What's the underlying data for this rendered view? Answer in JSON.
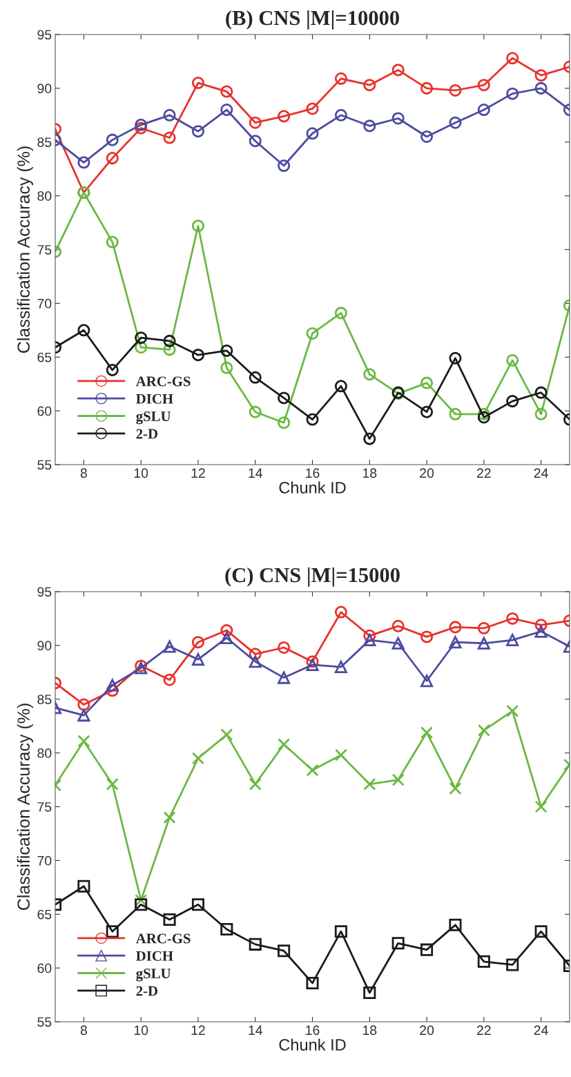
{
  "chart_data": [
    {
      "type": "line",
      "title": "(B) CNS |M|=10000",
      "xlabel": "Chunk ID",
      "ylabel": "Classification Accuracy (%)",
      "x": [
        7,
        8,
        9,
        10,
        11,
        12,
        13,
        14,
        15,
        16,
        17,
        18,
        19,
        20,
        21,
        22,
        23,
        24,
        25
      ],
      "xlim": [
        7,
        25
      ],
      "xticks": [
        8,
        10,
        12,
        14,
        16,
        18,
        20,
        22,
        24
      ],
      "ylim": [
        55,
        95
      ],
      "yticks": [
        55,
        60,
        65,
        70,
        75,
        80,
        85,
        90,
        95
      ],
      "grid": false,
      "legend": "bottom left",
      "marker": "circle",
      "line_style": "solid",
      "series": [
        {
          "name": "ARC-GS",
          "color": "#e8312a",
          "values": [
            86.2,
            80.3,
            83.5,
            86.3,
            85.4,
            90.5,
            89.7,
            86.8,
            87.4,
            88.1,
            90.9,
            90.3,
            91.7,
            90.0,
            89.8,
            90.3,
            92.8,
            91.2,
            92.0
          ]
        },
        {
          "name": "DICH",
          "color": "#4b4aa0",
          "values": [
            85.2,
            83.1,
            85.2,
            86.6,
            87.5,
            86.0,
            88.0,
            85.1,
            82.8,
            85.8,
            87.5,
            86.5,
            87.2,
            85.5,
            86.8,
            88.0,
            89.5,
            90.0,
            88.0
          ]
        },
        {
          "name": "gSLU",
          "color": "#6ab842",
          "values": [
            74.8,
            80.3,
            75.7,
            65.9,
            65.7,
            77.2,
            64.0,
            59.9,
            58.9,
            67.2,
            69.1,
            63.4,
            61.6,
            62.6,
            59.7,
            59.7,
            64.7,
            59.7,
            69.8
          ]
        },
        {
          "name": "2-D",
          "color": "#1a1a1a",
          "values": [
            65.9,
            67.5,
            63.8,
            66.8,
            66.5,
            65.2,
            65.6,
            63.1,
            61.2,
            59.2,
            62.3,
            57.4,
            61.7,
            59.9,
            64.9,
            59.4,
            60.9,
            61.7,
            59.2
          ]
        }
      ]
    },
    {
      "type": "line",
      "title": "(C) CNS |M|=15000",
      "xlabel": "Chunk ID",
      "ylabel": "Classification Accuracy (%)",
      "x": [
        7,
        8,
        9,
        10,
        11,
        12,
        13,
        14,
        15,
        16,
        17,
        18,
        19,
        20,
        21,
        22,
        23,
        24,
        25
      ],
      "xlim": [
        7,
        25
      ],
      "xticks": [
        8,
        10,
        12,
        14,
        16,
        18,
        20,
        22,
        24
      ],
      "ylim": [
        55,
        95
      ],
      "yticks": [
        55,
        60,
        65,
        70,
        75,
        80,
        85,
        90,
        95
      ],
      "grid": false,
      "legend": "bottom left",
      "line_style": "solid",
      "series": [
        {
          "name": "ARC-GS",
          "color": "#e8312a",
          "marker": "circle",
          "values": [
            86.5,
            84.5,
            85.8,
            88.1,
            86.8,
            90.3,
            91.4,
            89.2,
            89.8,
            88.5,
            93.1,
            90.9,
            91.8,
            90.8,
            91.7,
            91.6,
            92.5,
            91.9,
            92.3
          ]
        },
        {
          "name": "DICH",
          "color": "#4b4aa0",
          "marker": "triangle",
          "values": [
            84.2,
            83.5,
            86.3,
            87.9,
            89.9,
            88.7,
            90.7,
            88.5,
            87.0,
            88.2,
            88.0,
            90.5,
            90.2,
            86.7,
            90.3,
            90.2,
            90.5,
            91.3,
            89.9
          ]
        },
        {
          "name": "gSLU",
          "color": "#6ab842",
          "marker": "cross",
          "values": [
            77.0,
            81.1,
            77.1,
            66.3,
            74.0,
            79.5,
            81.7,
            77.1,
            80.8,
            78.4,
            79.8,
            77.1,
            77.5,
            81.9,
            76.7,
            82.1,
            83.9,
            75.0,
            78.9
          ]
        },
        {
          "name": "2-D",
          "color": "#1a1a1a",
          "marker": "square",
          "values": [
            65.9,
            67.6,
            63.4,
            65.9,
            64.5,
            65.9,
            63.6,
            62.2,
            61.6,
            58.6,
            63.4,
            57.7,
            62.3,
            61.7,
            64.0,
            60.6,
            60.3,
            63.4,
            60.2
          ]
        }
      ]
    }
  ]
}
